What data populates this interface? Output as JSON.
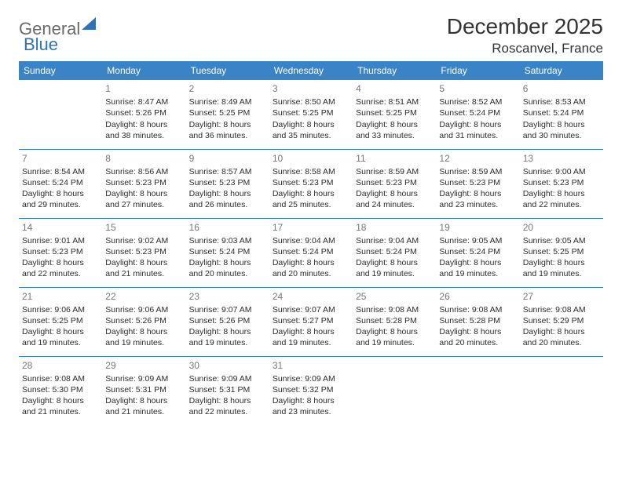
{
  "logo": {
    "part1": "General",
    "part2": "Blue"
  },
  "title": "December 2025",
  "location": "Roscanvel, France",
  "colors": {
    "header_bg": "#3a83c6",
    "header_text": "#ffffff",
    "border": "#3a83c6",
    "daynum": "#777777",
    "body_text": "#2b2b2b",
    "logo_gray": "#6a6a6a",
    "logo_blue": "#2f72b8"
  },
  "weekdays": [
    "Sunday",
    "Monday",
    "Tuesday",
    "Wednesday",
    "Thursday",
    "Friday",
    "Saturday"
  ],
  "weeks": [
    [
      null,
      {
        "day": "1",
        "sunrise": "Sunrise: 8:47 AM",
        "sunset": "Sunset: 5:26 PM",
        "daylight": "Daylight: 8 hours and 38 minutes."
      },
      {
        "day": "2",
        "sunrise": "Sunrise: 8:49 AM",
        "sunset": "Sunset: 5:25 PM",
        "daylight": "Daylight: 8 hours and 36 minutes."
      },
      {
        "day": "3",
        "sunrise": "Sunrise: 8:50 AM",
        "sunset": "Sunset: 5:25 PM",
        "daylight": "Daylight: 8 hours and 35 minutes."
      },
      {
        "day": "4",
        "sunrise": "Sunrise: 8:51 AM",
        "sunset": "Sunset: 5:25 PM",
        "daylight": "Daylight: 8 hours and 33 minutes."
      },
      {
        "day": "5",
        "sunrise": "Sunrise: 8:52 AM",
        "sunset": "Sunset: 5:24 PM",
        "daylight": "Daylight: 8 hours and 31 minutes."
      },
      {
        "day": "6",
        "sunrise": "Sunrise: 8:53 AM",
        "sunset": "Sunset: 5:24 PM",
        "daylight": "Daylight: 8 hours and 30 minutes."
      }
    ],
    [
      {
        "day": "7",
        "sunrise": "Sunrise: 8:54 AM",
        "sunset": "Sunset: 5:24 PM",
        "daylight": "Daylight: 8 hours and 29 minutes."
      },
      {
        "day": "8",
        "sunrise": "Sunrise: 8:56 AM",
        "sunset": "Sunset: 5:23 PM",
        "daylight": "Daylight: 8 hours and 27 minutes."
      },
      {
        "day": "9",
        "sunrise": "Sunrise: 8:57 AM",
        "sunset": "Sunset: 5:23 PM",
        "daylight": "Daylight: 8 hours and 26 minutes."
      },
      {
        "day": "10",
        "sunrise": "Sunrise: 8:58 AM",
        "sunset": "Sunset: 5:23 PM",
        "daylight": "Daylight: 8 hours and 25 minutes."
      },
      {
        "day": "11",
        "sunrise": "Sunrise: 8:59 AM",
        "sunset": "Sunset: 5:23 PM",
        "daylight": "Daylight: 8 hours and 24 minutes."
      },
      {
        "day": "12",
        "sunrise": "Sunrise: 8:59 AM",
        "sunset": "Sunset: 5:23 PM",
        "daylight": "Daylight: 8 hours and 23 minutes."
      },
      {
        "day": "13",
        "sunrise": "Sunrise: 9:00 AM",
        "sunset": "Sunset: 5:23 PM",
        "daylight": "Daylight: 8 hours and 22 minutes."
      }
    ],
    [
      {
        "day": "14",
        "sunrise": "Sunrise: 9:01 AM",
        "sunset": "Sunset: 5:23 PM",
        "daylight": "Daylight: 8 hours and 22 minutes."
      },
      {
        "day": "15",
        "sunrise": "Sunrise: 9:02 AM",
        "sunset": "Sunset: 5:23 PM",
        "daylight": "Daylight: 8 hours and 21 minutes."
      },
      {
        "day": "16",
        "sunrise": "Sunrise: 9:03 AM",
        "sunset": "Sunset: 5:24 PM",
        "daylight": "Daylight: 8 hours and 20 minutes."
      },
      {
        "day": "17",
        "sunrise": "Sunrise: 9:04 AM",
        "sunset": "Sunset: 5:24 PM",
        "daylight": "Daylight: 8 hours and 20 minutes."
      },
      {
        "day": "18",
        "sunrise": "Sunrise: 9:04 AM",
        "sunset": "Sunset: 5:24 PM",
        "daylight": "Daylight: 8 hours and 19 minutes."
      },
      {
        "day": "19",
        "sunrise": "Sunrise: 9:05 AM",
        "sunset": "Sunset: 5:24 PM",
        "daylight": "Daylight: 8 hours and 19 minutes."
      },
      {
        "day": "20",
        "sunrise": "Sunrise: 9:05 AM",
        "sunset": "Sunset: 5:25 PM",
        "daylight": "Daylight: 8 hours and 19 minutes."
      }
    ],
    [
      {
        "day": "21",
        "sunrise": "Sunrise: 9:06 AM",
        "sunset": "Sunset: 5:25 PM",
        "daylight": "Daylight: 8 hours and 19 minutes."
      },
      {
        "day": "22",
        "sunrise": "Sunrise: 9:06 AM",
        "sunset": "Sunset: 5:26 PM",
        "daylight": "Daylight: 8 hours and 19 minutes."
      },
      {
        "day": "23",
        "sunrise": "Sunrise: 9:07 AM",
        "sunset": "Sunset: 5:26 PM",
        "daylight": "Daylight: 8 hours and 19 minutes."
      },
      {
        "day": "24",
        "sunrise": "Sunrise: 9:07 AM",
        "sunset": "Sunset: 5:27 PM",
        "daylight": "Daylight: 8 hours and 19 minutes."
      },
      {
        "day": "25",
        "sunrise": "Sunrise: 9:08 AM",
        "sunset": "Sunset: 5:28 PM",
        "daylight": "Daylight: 8 hours and 19 minutes."
      },
      {
        "day": "26",
        "sunrise": "Sunrise: 9:08 AM",
        "sunset": "Sunset: 5:28 PM",
        "daylight": "Daylight: 8 hours and 20 minutes."
      },
      {
        "day": "27",
        "sunrise": "Sunrise: 9:08 AM",
        "sunset": "Sunset: 5:29 PM",
        "daylight": "Daylight: 8 hours and 20 minutes."
      }
    ],
    [
      {
        "day": "28",
        "sunrise": "Sunrise: 9:08 AM",
        "sunset": "Sunset: 5:30 PM",
        "daylight": "Daylight: 8 hours and 21 minutes."
      },
      {
        "day": "29",
        "sunrise": "Sunrise: 9:09 AM",
        "sunset": "Sunset: 5:31 PM",
        "daylight": "Daylight: 8 hours and 21 minutes."
      },
      {
        "day": "30",
        "sunrise": "Sunrise: 9:09 AM",
        "sunset": "Sunset: 5:31 PM",
        "daylight": "Daylight: 8 hours and 22 minutes."
      },
      {
        "day": "31",
        "sunrise": "Sunrise: 9:09 AM",
        "sunset": "Sunset: 5:32 PM",
        "daylight": "Daylight: 8 hours and 23 minutes."
      },
      null,
      null,
      null
    ]
  ]
}
